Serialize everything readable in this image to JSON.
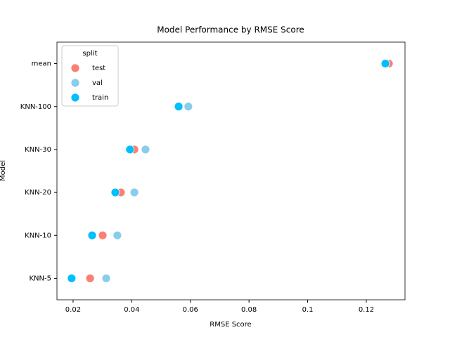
{
  "chart_data": {
    "type": "dot",
    "title": "Model Performance by RMSE Score",
    "xlabel": "RMSE Score",
    "ylabel": "Model",
    "categories": [
      "mean",
      "KNN-100",
      "KNN-30",
      "KNN-20",
      "KNN-10",
      "KNN-5"
    ],
    "series": [
      {
        "name": "test",
        "color": "#fa8072",
        "values": [
          0.1277,
          0.056,
          0.0409,
          0.0363,
          0.0301,
          0.0258
        ]
      },
      {
        "name": "val",
        "color": "#87ceeb",
        "values": [
          0.1265,
          0.0593,
          0.0447,
          0.0409,
          0.0351,
          0.0313
        ]
      },
      {
        "name": "train",
        "color": "#00bfff",
        "values": [
          0.1265,
          0.056,
          0.0394,
          0.0344,
          0.0265,
          0.0195
        ]
      }
    ],
    "legend_title": "split",
    "legend": "upper left",
    "xlim": [
      0.0145,
      0.1332
    ],
    "xticks": [
      0.02,
      0.04,
      0.06,
      0.08,
      0.1,
      0.12
    ]
  }
}
